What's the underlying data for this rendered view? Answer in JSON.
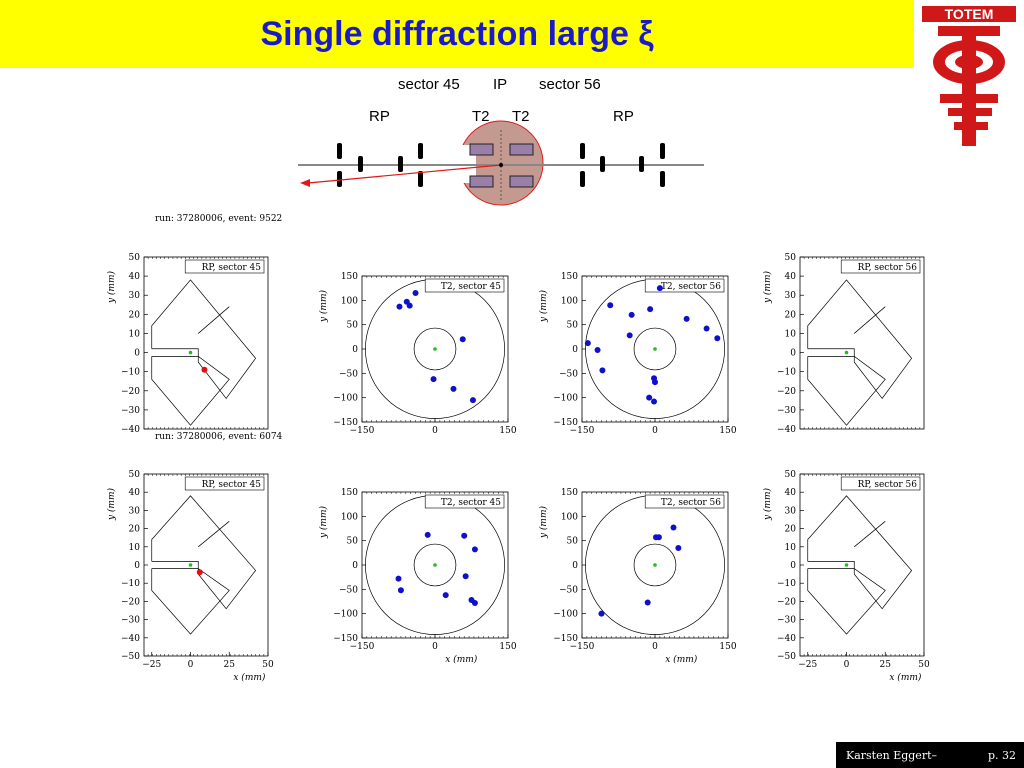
{
  "title": "Single diffraction large ξ",
  "logo": {
    "text": "TOTEM",
    "colors": {
      "red": "#d01818",
      "white": "#ffffff"
    }
  },
  "schematic": {
    "top_labels": {
      "sector45": "sector 45",
      "ip": "IP",
      "sector56": "sector 56"
    },
    "row_labels": {
      "rp_left": "RP",
      "t2_left": "T2",
      "t2_right": "T2",
      "rp_right": "RP"
    }
  },
  "events": [
    {
      "run_label": "run: 37280006, event: 9522"
    },
    {
      "run_label": "run: 37280006, event: 6074"
    }
  ],
  "axis_labels": {
    "x": "x",
    "y": "y",
    "unit": "(mm)"
  },
  "footer": {
    "author": "Karsten Eggert–",
    "page": "p. 32"
  },
  "colors": {
    "hit_blue": "#1010cc",
    "hit_red": "#e01010",
    "center_green": "#22bb22",
    "title_bar": "#ffff00",
    "title_text": "#1a1acc"
  },
  "chart_data": [
    {
      "type": "scatter",
      "title": "RP, sector 45",
      "event": "run: 37280006, event: 9522",
      "xlim": [
        -30,
        50
      ],
      "ylim": [
        -40,
        50
      ],
      "xticks": [],
      "yticks": [
        50,
        40,
        30,
        20,
        10,
        0,
        -10,
        -20,
        -30,
        -40
      ],
      "xlabel": "",
      "ylabel": "y (mm)",
      "points": [
        {
          "x": 9,
          "y": -9,
          "color": "red"
        }
      ],
      "center": [
        0,
        0
      ]
    },
    {
      "type": "scatter",
      "title": "T2, sector 45",
      "event": "run: 37280006, event: 9522",
      "xlim": [
        -150,
        150
      ],
      "ylim": [
        -150,
        150
      ],
      "xticks": [
        -150,
        0,
        150
      ],
      "yticks": [
        150,
        100,
        50,
        0,
        -50,
        -100,
        -150
      ],
      "xlabel": "",
      "ylabel": "y (mm)",
      "points": [
        {
          "x": -73,
          "y": 87
        },
        {
          "x": -58,
          "y": 97
        },
        {
          "x": -52,
          "y": 89
        },
        {
          "x": -40,
          "y": 115
        },
        {
          "x": 57,
          "y": 20
        },
        {
          "x": -3,
          "y": -62
        },
        {
          "x": 38,
          "y": -82
        },
        {
          "x": 78,
          "y": -105
        }
      ],
      "center": [
        0,
        0
      ]
    },
    {
      "type": "scatter",
      "title": "T2, sector 56",
      "event": "run: 37280006, event: 9522",
      "xlim": [
        -150,
        150
      ],
      "ylim": [
        -150,
        150
      ],
      "xticks": [
        -150,
        0,
        150
      ],
      "yticks": [
        150,
        100,
        50,
        0,
        -50,
        -100,
        -150
      ],
      "xlabel": "",
      "ylabel": "y (mm)",
      "points": [
        {
          "x": -138,
          "y": 12
        },
        {
          "x": -118,
          "y": -2
        },
        {
          "x": -108,
          "y": -44
        },
        {
          "x": -92,
          "y": 90
        },
        {
          "x": -48,
          "y": 70
        },
        {
          "x": -52,
          "y": 28
        },
        {
          "x": -10,
          "y": 82
        },
        {
          "x": 10,
          "y": 125
        },
        {
          "x": 65,
          "y": 62
        },
        {
          "x": 106,
          "y": 42
        },
        {
          "x": 128,
          "y": 22
        },
        {
          "x": -2,
          "y": -60
        },
        {
          "x": 0,
          "y": -68
        },
        {
          "x": -12,
          "y": -100
        },
        {
          "x": -2,
          "y": -108
        }
      ],
      "center": [
        0,
        0
      ]
    },
    {
      "type": "scatter",
      "title": "RP, sector 56",
      "event": "run: 37280006, event: 9522",
      "xlim": [
        -30,
        50
      ],
      "ylim": [
        -40,
        50
      ],
      "xticks": [],
      "yticks": [
        50,
        40,
        30,
        20,
        10,
        0,
        -10,
        -20,
        -30,
        -40
      ],
      "xlabel": "",
      "ylabel": "y (mm)",
      "points": [],
      "center": [
        0,
        0
      ]
    },
    {
      "type": "scatter",
      "title": "RP, sector 45",
      "event": "run: 37280006, event: 6074",
      "xlim": [
        -30,
        50
      ],
      "ylim": [
        -50,
        50
      ],
      "xticks": [
        -25,
        0,
        25,
        50
      ],
      "yticks": [
        50,
        40,
        30,
        20,
        10,
        0,
        -10,
        -20,
        -30,
        -40,
        -50
      ],
      "xlabel": "x (mm)",
      "ylabel": "y (mm)",
      "points": [
        {
          "x": 6,
          "y": -4,
          "color": "red"
        }
      ],
      "center": [
        0,
        0
      ]
    },
    {
      "type": "scatter",
      "title": "T2, sector 45",
      "event": "run: 37280006, event: 6074",
      "xlim": [
        -150,
        150
      ],
      "ylim": [
        -150,
        150
      ],
      "xticks": [
        -150,
        0,
        150
      ],
      "yticks": [
        150,
        100,
        50,
        0,
        -50,
        -100,
        -150
      ],
      "xlabel": "x (mm)",
      "ylabel": "y (mm)",
      "points": [
        {
          "x": -15,
          "y": 62
        },
        {
          "x": 60,
          "y": 60
        },
        {
          "x": 82,
          "y": 32
        },
        {
          "x": -75,
          "y": -28
        },
        {
          "x": -70,
          "y": -52
        },
        {
          "x": 63,
          "y": -23
        },
        {
          "x": 22,
          "y": -62
        },
        {
          "x": 75,
          "y": -72
        },
        {
          "x": 82,
          "y": -78
        }
      ],
      "center": [
        0,
        0
      ]
    },
    {
      "type": "scatter",
      "title": "T2, sector 56",
      "event": "run: 37280006, event: 6074",
      "xlim": [
        -150,
        150
      ],
      "ylim": [
        -150,
        150
      ],
      "xticks": [
        -150,
        0,
        150
      ],
      "yticks": [
        150,
        100,
        50,
        0,
        -50,
        -100,
        -150
      ],
      "xlabel": "x (mm)",
      "ylabel": "y (mm)",
      "points": [
        {
          "x": 38,
          "y": 77
        },
        {
          "x": 2,
          "y": 57
        },
        {
          "x": 8,
          "y": 57
        },
        {
          "x": 48,
          "y": 35
        },
        {
          "x": -15,
          "y": -77
        },
        {
          "x": -110,
          "y": -100
        }
      ],
      "center": [
        0,
        0
      ]
    },
    {
      "type": "scatter",
      "title": "RP, sector 56",
      "event": "run: 37280006, event: 6074",
      "xlim": [
        -30,
        50
      ],
      "ylim": [
        -50,
        50
      ],
      "xticks": [
        -25,
        0,
        25,
        50
      ],
      "yticks": [
        50,
        40,
        30,
        20,
        10,
        0,
        -10,
        -20,
        -30,
        -40,
        -50
      ],
      "xlabel": "x (mm)",
      "ylabel": "y (mm)",
      "points": [],
      "center": [
        0,
        0
      ]
    }
  ]
}
